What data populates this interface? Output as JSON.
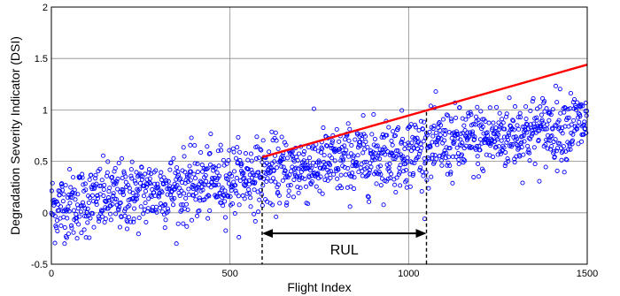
{
  "chart_data": {
    "type": "scatter",
    "title": "",
    "xlabel": "Flight Index",
    "ylabel": "Degradation Severity Indicator (DSI)",
    "xlim": [
      0,
      1500
    ],
    "ylim": [
      -0.5,
      2
    ],
    "x_ticks": [
      0,
      500,
      1000,
      1500
    ],
    "y_ticks": [
      -0.5,
      0,
      0.5,
      1,
      1.5,
      2
    ],
    "x_tick_labels": [
      "0",
      "500",
      "1000",
      "1500"
    ],
    "y_tick_labels": [
      "-0.5",
      "0",
      "0.5",
      "1",
      "1.5",
      "2"
    ],
    "grid": true,
    "marker": "open-circle",
    "colors": {
      "points": "#0000ff",
      "trend": "#ff0000",
      "markers": "#000000"
    },
    "series": [
      {
        "values": "~1500 noisy DSI samples, one per flight index",
        "trend_start": [
          0,
          0.05
        ],
        "trend_slope_per_flight": 0.00055,
        "noise_sd": 0.17
      }
    ],
    "trend_line": {
      "x": [
        590,
        1500
      ],
      "y": [
        0.54,
        1.44
      ]
    },
    "rul_annotation": {
      "label": "RUL",
      "x_start": 590,
      "x_end": 1050,
      "y": -0.2
    },
    "dashed_markers": [
      {
        "x": 590,
        "y_top": 0.54
      },
      {
        "x": 1050,
        "y_top": 0.98
      }
    ]
  }
}
